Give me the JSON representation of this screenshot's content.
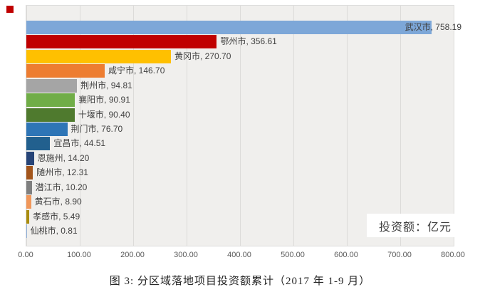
{
  "chart_data": {
    "type": "bar",
    "orientation": "horizontal",
    "title": "",
    "categories": [
      "武汉市",
      "鄂州市",
      "黄冈市",
      "咸宁市",
      "荆州市",
      "襄阳市",
      "十堰市",
      "荆门市",
      "宜昌市",
      "恩施州",
      "随州市",
      "潜江市",
      "黄石市",
      "孝感市",
      "仙桃市"
    ],
    "values": [
      758.19,
      356.61,
      270.7,
      146.7,
      94.81,
      90.91,
      90.4,
      76.7,
      44.51,
      14.2,
      12.31,
      10.2,
      8.9,
      5.49,
      0.81
    ],
    "value_labels": [
      "758.19",
      "356.61",
      "270.70",
      "146.70",
      "94.81",
      "90.91",
      "90.40",
      "76.70",
      "44.51",
      "14.20",
      "12.31",
      "10.20",
      "8.90",
      "5.49",
      "0.81"
    ],
    "bar_colors": [
      "#7DA7D8",
      "#C00000",
      "#FFC000",
      "#ED7D31",
      "#A5A5A5",
      "#70AD47",
      "#4F7A2E",
      "#2E75B6",
      "#22608E",
      "#264478",
      "#A3551B",
      "#7F7F7F",
      "#F1975A",
      "#A98C0E",
      "#8FAFD9"
    ],
    "data_label_format": "{category}, {value}",
    "x_ticks": [
      "0.00",
      "100.00",
      "200.00",
      "300.00",
      "400.00",
      "500.00",
      "600.00",
      "700.00",
      "800.00"
    ],
    "x_tick_values": [
      0,
      100,
      200,
      300,
      400,
      500,
      600,
      700,
      800
    ],
    "xlim": [
      0,
      800
    ],
    "grid": true,
    "legend_position": "none",
    "unit_annotation": "投资额：亿元",
    "caption": "图 3: 分区域落地项目投资额累计（2017 年 1-9 月）"
  },
  "colors": {
    "plot_background": "#f0efed",
    "gridline": "#dcdbd9",
    "data_label_text": "#404040",
    "tick_text": "#595959",
    "corner_marker": "#bf0000",
    "annotation_background": "#ffffff"
  }
}
